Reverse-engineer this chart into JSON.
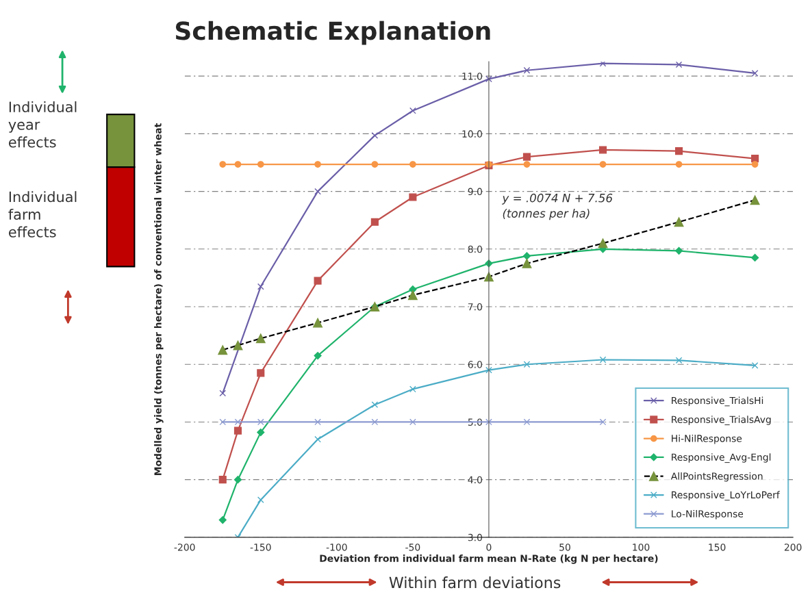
{
  "chart_data": {
    "type": "line",
    "title": "Schematic Explanation",
    "xlabel": "Deviation from individual farm mean N-Rate (kg N per hectare)",
    "ylabel": "Modelled yield (tonnes per hectare) of conventional winter wheat",
    "xlim": [
      -200,
      200
    ],
    "xticks": [
      -200,
      -150,
      -100,
      -50,
      0,
      50,
      100,
      150,
      200
    ],
    "ylim": [
      3,
      11.25
    ],
    "yticks": [
      {
        "value": 3,
        "label": "3.0"
      },
      {
        "value": 4,
        "label": "4.0"
      },
      {
        "value": 5,
        "label": "5.0"
      },
      {
        "value": 6,
        "label": "6.0"
      },
      {
        "value": 7,
        "label": "7.0"
      },
      {
        "value": 8,
        "label": "8.0"
      },
      {
        "value": 9,
        "label": "9.0"
      },
      {
        "value": 10,
        "label": "10.0"
      },
      {
        "value": 11,
        "label": "11.0"
      }
    ],
    "grid": "y",
    "legend": "bottom right",
    "series": [
      {
        "name": "Responsive_TrialsHi",
        "color": "#6a5fa8",
        "marker": "cross",
        "x": [
          -175,
          -150,
          -112.5,
          -75,
          -50,
          0,
          25,
          75,
          125,
          175
        ],
        "values": [
          5.5,
          7.35,
          9.0,
          9.97,
          10.4,
          10.95,
          11.1,
          11.22,
          11.2,
          11.05
        ]
      },
      {
        "name": "Responsive_TrialsAvg",
        "color": "#c0504d",
        "marker": "square",
        "x": [
          -175,
          -165,
          -150,
          -112.5,
          -75,
          -50,
          0,
          25,
          75,
          125,
          175
        ],
        "values": [
          4.0,
          4.85,
          5.85,
          7.45,
          8.47,
          8.9,
          9.45,
          9.6,
          9.72,
          9.7,
          9.57
        ]
      },
      {
        "name": "Hi-NilResponse",
        "color": "#f79646",
        "marker": "circle",
        "x": [
          -175,
          -165,
          -150,
          -112.5,
          -75,
          -50,
          0,
          25,
          75,
          125,
          175
        ],
        "values": [
          9.47,
          9.47,
          9.47,
          9.47,
          9.47,
          9.47,
          9.47,
          9.47,
          9.47,
          9.47,
          9.47
        ]
      },
      {
        "name": "Responsive_Avg-Engl",
        "color": "#1fb36b",
        "marker": "diamond",
        "x": [
          -175,
          -165,
          -150,
          -112.5,
          -75,
          -50,
          0,
          25,
          75,
          125,
          175
        ],
        "values": [
          3.3,
          4.0,
          4.82,
          6.15,
          7.0,
          7.3,
          7.75,
          7.88,
          8.0,
          7.97,
          7.85
        ]
      },
      {
        "name": "AllPointsRegression",
        "color": "#77933c",
        "marker": "triangle",
        "line_style": "dashed",
        "x": [
          -175,
          -165,
          -150,
          -112.5,
          -75,
          -50,
          0,
          25,
          75,
          125,
          175
        ],
        "values": [
          6.25,
          6.33,
          6.45,
          6.72,
          7.0,
          7.2,
          7.52,
          7.75,
          8.1,
          8.47,
          8.85
        ]
      },
      {
        "name": "Responsive_LoYrLoPerf",
        "color": "#4bacc6",
        "marker": "cross",
        "x": [
          -165,
          -150,
          -112.5,
          -75,
          -50,
          0,
          25,
          75,
          125,
          175
        ],
        "values": [
          3.0,
          3.65,
          4.7,
          5.3,
          5.57,
          5.9,
          6.0,
          6.08,
          6.07,
          5.98
        ]
      },
      {
        "name": "Lo-NilResponse",
        "color": "#8c9ad0",
        "marker": "cross",
        "x": [
          -175,
          -165,
          -150,
          -112.5,
          -75,
          -50,
          0,
          25,
          75
        ],
        "values": [
          5.0,
          5.0,
          5.0,
          5.0,
          5.0,
          5.0,
          5.0,
          5.0,
          5.0
        ]
      }
    ],
    "annotations": [
      "y = .0074 N + 7.56\n(tonnes per ha)",
      "Individual\nyear\neffects",
      "Individual\nfarm\neffects",
      "Within farm deviations"
    ]
  }
}
